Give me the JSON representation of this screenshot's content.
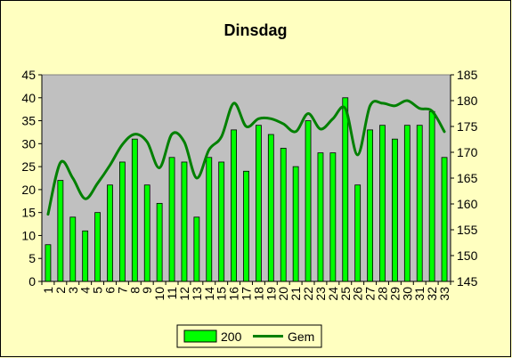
{
  "chart_data": {
    "type": "bar",
    "title": "Dinsdag",
    "xlabel": "",
    "ylabel": "",
    "ylim": [
      0,
      45
    ],
    "y2lim": [
      145,
      185
    ],
    "yticks": [
      "0",
      "5",
      "10",
      "15",
      "20",
      "25",
      "30",
      "35",
      "40",
      "45"
    ],
    "y2ticks": [
      "145",
      "150",
      "155",
      "160",
      "165",
      "170",
      "175",
      "180",
      "185"
    ],
    "grid": false,
    "legend_position": "bottom",
    "categories": [
      "1",
      "2",
      "3",
      "4",
      "5",
      "6",
      "7",
      "8",
      "9",
      "10",
      "11",
      "12",
      "13",
      "14",
      "15",
      "16",
      "17",
      "18",
      "19",
      "20",
      "21",
      "22",
      "23",
      "24",
      "25",
      "26",
      "27",
      "28",
      "29",
      "30",
      "31",
      "32",
      "33"
    ],
    "series": [
      {
        "name": "200",
        "type": "bar",
        "axis": "left",
        "color": "#00ff00",
        "values": [
          8,
          22,
          14,
          11,
          15,
          21,
          26,
          31,
          21,
          17,
          27,
          26,
          14,
          27,
          26,
          33,
          24,
          34,
          32,
          29,
          25,
          35,
          28,
          28,
          40,
          21,
          33,
          34,
          31,
          34,
          34,
          37,
          27
        ]
      },
      {
        "name": "Gem",
        "type": "line",
        "axis": "right",
        "color": "#008000",
        "values": [
          158,
          168,
          165,
          161,
          164,
          167.5,
          171.5,
          173.5,
          172,
          167,
          173.5,
          172,
          165,
          170.5,
          173,
          179.5,
          175,
          176.5,
          176.5,
          175.5,
          174,
          177.5,
          174.5,
          176.5,
          178.5,
          169.5,
          179,
          179.5,
          179,
          180,
          178.5,
          178,
          174
        ]
      }
    ]
  }
}
